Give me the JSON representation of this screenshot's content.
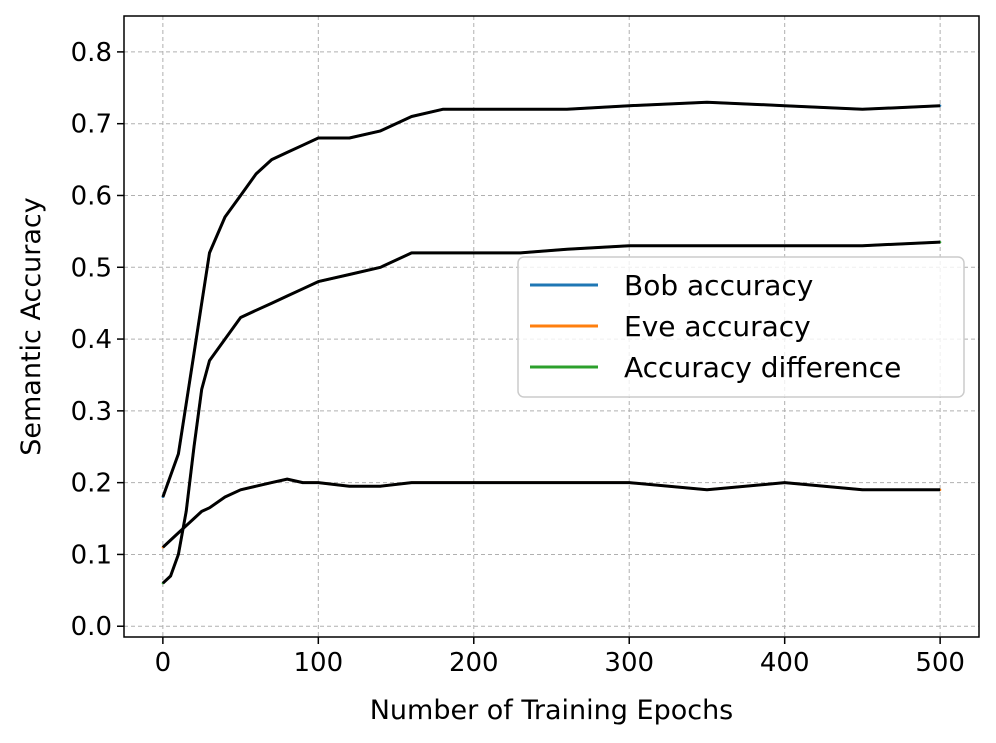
{
  "chart_data": {
    "type": "line",
    "title": "",
    "xlabel": "Number of Training Epochs",
    "ylabel": "Semantic Accuracy",
    "xlim": [
      -25,
      525
    ],
    "ylim": [
      -0.015,
      0.85
    ],
    "xticks": [
      0,
      100,
      200,
      300,
      400,
      500
    ],
    "xtick_labels": [
      "0",
      "100",
      "200",
      "300",
      "400",
      "500"
    ],
    "yticks": [
      0.0,
      0.1,
      0.2,
      0.3,
      0.4,
      0.5,
      0.6,
      0.7,
      0.8
    ],
    "ytick_labels": [
      "0.0",
      "0.1",
      "0.2",
      "0.3",
      "0.4",
      "0.5",
      "0.6",
      "0.7",
      "0.8"
    ],
    "grid": true,
    "legend_position": "center-right",
    "x": [
      0,
      5,
      10,
      15,
      20,
      25,
      30,
      40,
      50,
      60,
      70,
      80,
      90,
      100,
      120,
      140,
      160,
      180,
      200,
      230,
      260,
      300,
      350,
      400,
      450,
      500
    ],
    "series": [
      {
        "name": "Bob accuracy",
        "color": "#1f77b4",
        "values": [
          0.18,
          0.21,
          0.24,
          0.31,
          0.38,
          0.45,
          0.52,
          0.57,
          0.6,
          0.63,
          0.65,
          0.66,
          0.67,
          0.68,
          0.68,
          0.69,
          0.71,
          0.72,
          0.72,
          0.72,
          0.72,
          0.725,
          0.73,
          0.725,
          0.72,
          0.725
        ]
      },
      {
        "name": "Eve accuracy",
        "color": "#ff7f0e",
        "values": [
          0.11,
          0.12,
          0.13,
          0.14,
          0.15,
          0.16,
          0.165,
          0.18,
          0.19,
          0.195,
          0.2,
          0.205,
          0.2,
          0.2,
          0.195,
          0.195,
          0.2,
          0.2,
          0.2,
          0.2,
          0.2,
          0.2,
          0.19,
          0.2,
          0.19,
          0.19
        ]
      },
      {
        "name": "Accuracy difference",
        "color": "#2ca02c",
        "values": [
          0.06,
          0.07,
          0.1,
          0.16,
          0.25,
          0.33,
          0.37,
          0.4,
          0.43,
          0.44,
          0.45,
          0.46,
          0.47,
          0.48,
          0.49,
          0.5,
          0.52,
          0.52,
          0.52,
          0.52,
          0.525,
          0.53,
          0.53,
          0.53,
          0.53,
          0.535
        ]
      }
    ]
  }
}
